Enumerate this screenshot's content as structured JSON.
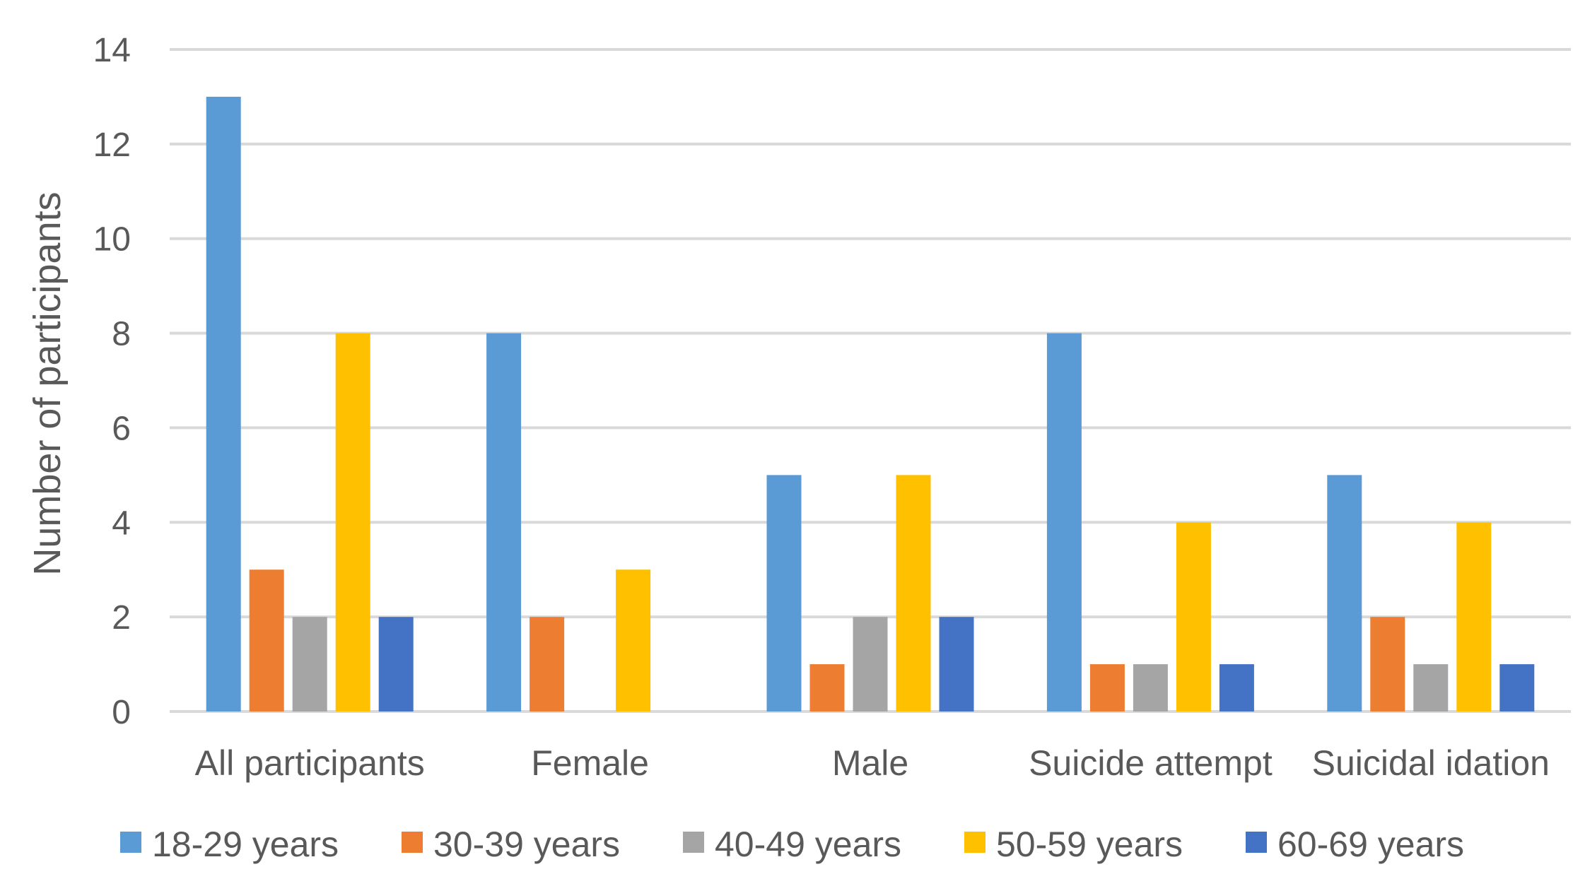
{
  "chart_data": {
    "type": "bar",
    "title": "",
    "xlabel": "",
    "ylabel": "Number  of participants",
    "ylim": [
      0,
      14
    ],
    "yticks": [
      0,
      2,
      4,
      6,
      8,
      10,
      12,
      14
    ],
    "grid": true,
    "legend_position": "bottom",
    "categories": [
      "All participants",
      "Female",
      "Male",
      "Suicide attempt",
      "Suicidal idation"
    ],
    "series": [
      {
        "name": "18-29 years",
        "color": "#5b9bd5",
        "values": [
          13,
          8,
          5,
          8,
          5
        ]
      },
      {
        "name": "30-39 years",
        "color": "#ed7d31",
        "values": [
          3,
          2,
          1,
          1,
          2
        ]
      },
      {
        "name": "40-49 years",
        "color": "#a5a5a5",
        "values": [
          2,
          0,
          2,
          1,
          1
        ]
      },
      {
        "name": "50-59 years",
        "color": "#ffc000",
        "values": [
          8,
          3,
          5,
          4,
          4
        ]
      },
      {
        "name": "60-69 years",
        "color": "#4472c4",
        "values": [
          2,
          0,
          2,
          1,
          1
        ]
      }
    ]
  }
}
